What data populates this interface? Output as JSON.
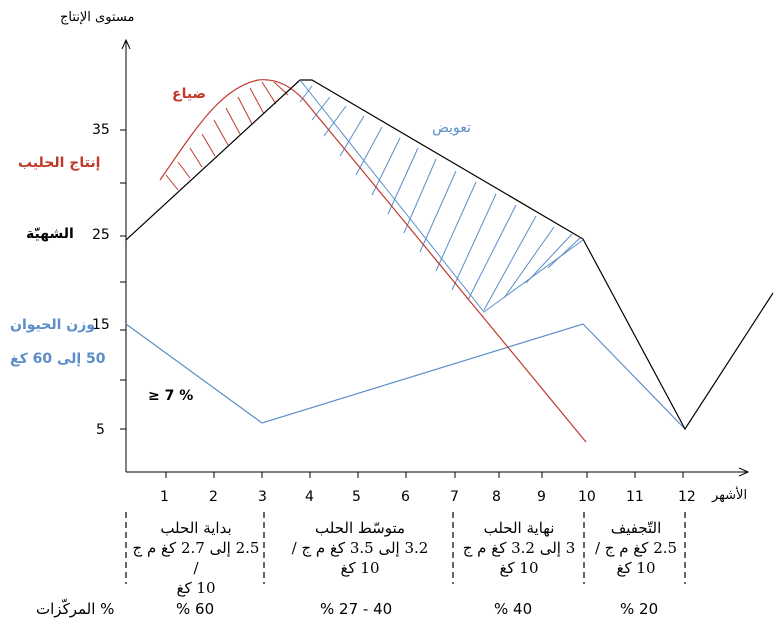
{
  "title_y": "مستوى الإنتاج",
  "title_x": "الأشهر",
  "y_ticks": [
    "35",
    "25",
    "15",
    "5"
  ],
  "x_ticks": [
    "1",
    "2",
    "3",
    "4",
    "5",
    "6",
    "7",
    "8",
    "9",
    "10",
    "11",
    "12"
  ],
  "labels": {
    "loss": "ضياع",
    "compensation": "تعويض",
    "milk_production": "إنتاج الحليب",
    "appetite": "الشهيّة",
    "animal_weight": "وزن الحيوان",
    "weight_range": "50 إلى 60 كغ",
    "threshold": "≥ 7 %"
  },
  "phases": [
    {
      "name": "بداية الحلب",
      "line1": "2.5 إلى 2.7 كغ م ج /",
      "line2": "10 كغ"
    },
    {
      "name": "متوسّط الحلب",
      "line1": "3.2 إلى 3.5  كغ م ج /",
      "line2": "10 كغ"
    },
    {
      "name": "نهاية الحلب",
      "line1": "3 إلى 3.2 كغ م ج",
      "line2": "10 كغ"
    },
    {
      "name": "التّجفيف",
      "line1": "2.5 كغ م ج /",
      "line2": "10 كغ"
    }
  ],
  "concentrates": {
    "label": "% المركّزات",
    "values": [
      "60 %",
      "40 - 27 %",
      "40 %",
      "20 %"
    ]
  },
  "colors": {
    "milk": "#c0392b",
    "appetite": "#000000",
    "weight": "#5b8ec9",
    "loss_label": "#c0392b",
    "comp_label": "#5b8ec9"
  }
}
